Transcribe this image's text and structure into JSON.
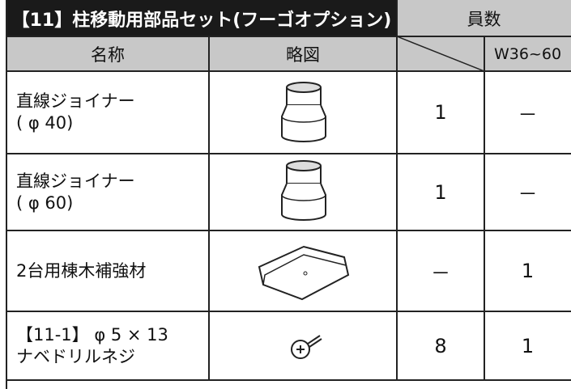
{
  "header": {
    "title": "【11】柱移動用部品セット(フーゴオプション)",
    "count": "員数"
  },
  "columns": {
    "name": "名称",
    "diagram": "略図",
    "w36_60": "W36~60"
  },
  "rows": [
    {
      "name": [
        "直線ジョイナー",
        "( φ 40)"
      ],
      "count": 1,
      "w36_60": "－"
    },
    {
      "name": [
        "直線ジョイナー",
        "( φ 60)"
      ],
      "count": 1,
      "w36_60": "－"
    },
    {
      "name": [
        "2台用棟木補強材"
      ],
      "count": "－",
      "w36_60": 1
    },
    {
      "name": [
        "【11-1】 φ 5 × 13",
        "ナベドリルネジ"
      ],
      "count": 8,
      "w36_60": 1
    }
  ]
}
